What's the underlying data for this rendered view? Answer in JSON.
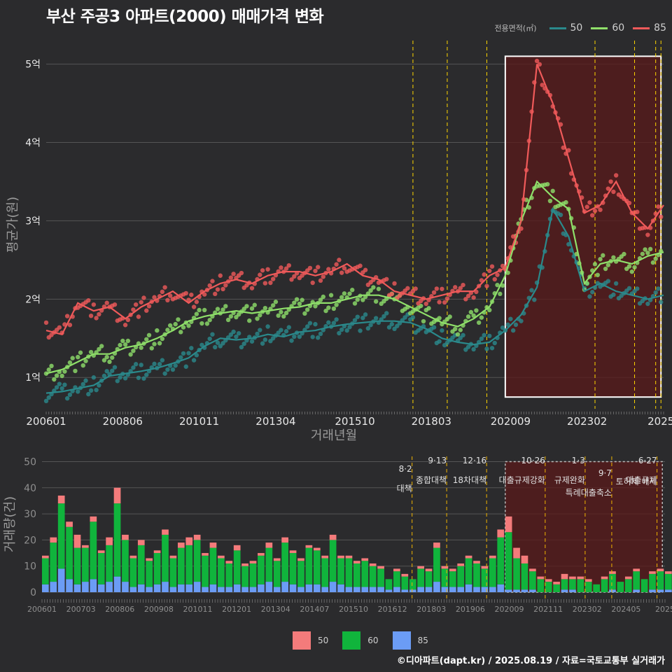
{
  "title": "부산 주공3 아파트(2000) 매매가격 변화",
  "legend_title": "전용면적(㎡)",
  "copyright": "©디아파트(dapt.kr) / 2025.08.19 / 자료=국토교통부 실거래가",
  "colors": {
    "s50": "#2a8a8c",
    "s60": "#8fe06a",
    "s85": "#f05a5a",
    "b50": "#f47b7b",
    "b60": "#10b43c",
    "b85": "#6b9cf5",
    "policy": "#ffd700",
    "highlight": "#5a1a1a"
  },
  "chart_data": [
    {
      "type": "line",
      "ylabel": "평균가(원)",
      "xlabel": "거래년월",
      "x_ticks": [
        "200601",
        "200806",
        "201011",
        "201304",
        "201510",
        "201803",
        "202009",
        "202302",
        "2025"
      ],
      "y_ticks": [
        "1억",
        "2억",
        "3억",
        "4억",
        "5억"
      ],
      "y_tick_values": [
        1,
        2,
        3,
        4,
        5
      ],
      "ylim": [
        0.6,
        5.3
      ],
      "x_unit": "month index from 2006-01",
      "xlim": [
        0,
        234
      ],
      "series": [
        {
          "name": "50",
          "x": [
            0,
            6,
            12,
            18,
            24,
            30,
            36,
            42,
            48,
            54,
            60,
            66,
            72,
            78,
            84,
            90,
            96,
            102,
            108,
            114,
            120,
            126,
            132,
            138,
            144,
            150,
            156,
            162,
            168,
            174,
            180,
            186,
            192,
            198,
            204,
            210,
            216,
            222,
            228,
            234
          ],
          "values": [
            0.8,
            0.82,
            0.86,
            0.9,
            1.02,
            1.05,
            1.08,
            1.12,
            1.18,
            1.25,
            1.4,
            1.5,
            1.48,
            1.5,
            1.55,
            1.52,
            1.58,
            1.6,
            1.65,
            1.68,
            1.7,
            1.72,
            1.72,
            1.7,
            1.62,
            1.5,
            1.45,
            1.42,
            1.45,
            1.6,
            1.8,
            2.15,
            3.15,
            2.8,
            2.1,
            2.2,
            2.1,
            2.05,
            2.0,
            2.05
          ]
        },
        {
          "name": "60",
          "x": [
            0,
            6,
            12,
            18,
            24,
            30,
            36,
            42,
            48,
            54,
            60,
            66,
            72,
            78,
            84,
            90,
            96,
            102,
            108,
            114,
            120,
            126,
            132,
            138,
            144,
            150,
            156,
            162,
            168,
            174,
            180,
            186,
            192,
            198,
            204,
            210,
            216,
            222,
            228,
            234
          ],
          "values": [
            1.05,
            1.1,
            1.2,
            1.3,
            1.3,
            1.38,
            1.42,
            1.5,
            1.6,
            1.72,
            1.78,
            1.82,
            1.85,
            1.82,
            1.85,
            1.88,
            1.9,
            1.95,
            1.95,
            2.0,
            2.05,
            2.05,
            2.0,
            1.9,
            1.8,
            1.7,
            1.65,
            1.75,
            1.9,
            2.3,
            3.0,
            3.5,
            3.3,
            3.15,
            2.2,
            2.45,
            2.5,
            2.45,
            2.55,
            2.6
          ]
        },
        {
          "name": "85",
          "x": [
            0,
            6,
            12,
            18,
            24,
            30,
            36,
            42,
            48,
            54,
            60,
            66,
            72,
            78,
            84,
            90,
            96,
            102,
            108,
            114,
            120,
            126,
            132,
            138,
            144,
            150,
            156,
            162,
            168,
            174,
            180,
            186,
            192,
            198,
            204,
            210,
            216,
            222,
            228,
            234
          ],
          "values": [
            1.6,
            1.55,
            1.95,
            1.85,
            1.9,
            1.75,
            1.9,
            2.0,
            2.1,
            1.95,
            2.1,
            2.2,
            2.25,
            2.2,
            2.3,
            2.35,
            2.35,
            2.3,
            2.35,
            2.45,
            2.3,
            2.25,
            2.1,
            2.05,
            2.0,
            2.05,
            2.1,
            2.1,
            2.3,
            2.4,
            3.0,
            5.0,
            4.5,
            3.8,
            3.1,
            3.2,
            3.5,
            3.1,
            2.9,
            3.2
          ]
        }
      ],
      "policy_months": [
        139,
        152,
        167,
        208,
        223,
        231,
        233
      ],
      "highlight": [
        174,
        233
      ]
    },
    {
      "type": "bar",
      "ylabel": "거래량(건)",
      "x_ticks": [
        "200601",
        "200703",
        "200806",
        "200908",
        "201011",
        "201201",
        "201304",
        "201407",
        "201510",
        "201612",
        "201803",
        "201906",
        "202009",
        "202111",
        "202302",
        "202405",
        "2025"
      ],
      "y_ticks": [
        "0",
        "10",
        "20",
        "30",
        "40",
        "50"
      ],
      "y_tick_values": [
        0,
        10,
        20,
        30,
        40,
        50
      ],
      "ylim": [
        0,
        52
      ],
      "x": [
        0,
        3,
        6,
        9,
        12,
        15,
        18,
        21,
        24,
        27,
        30,
        33,
        36,
        39,
        42,
        45,
        48,
        51,
        54,
        57,
        60,
        63,
        66,
        69,
        72,
        75,
        78,
        81,
        84,
        87,
        90,
        93,
        96,
        99,
        102,
        105,
        108,
        111,
        114,
        117,
        120,
        123,
        126,
        129,
        132,
        135,
        138,
        141,
        144,
        147,
        150,
        153,
        156,
        159,
        162,
        165,
        168,
        171,
        174,
        177,
        180,
        183,
        186,
        189,
        192,
        195,
        198,
        201,
        204,
        207,
        210,
        213,
        216,
        219,
        222,
        225,
        228,
        231,
        234
      ],
      "series": [
        {
          "name": "50",
          "values": [
            1,
            2,
            3,
            2,
            5,
            1,
            2,
            1,
            3,
            6,
            2,
            1,
            2,
            1,
            1,
            2,
            1,
            2,
            3,
            2,
            1,
            2,
            1,
            1,
            2,
            1,
            1,
            1,
            2,
            1,
            2,
            1,
            1,
            1,
            1,
            1,
            2,
            1,
            1,
            1,
            1,
            1,
            1,
            0,
            1,
            1,
            0,
            1,
            1,
            2,
            1,
            1,
            1,
            1,
            1,
            1,
            1,
            3,
            6,
            4,
            3,
            1,
            1,
            1,
            1,
            2,
            1,
            1,
            1,
            0,
            1,
            1,
            0,
            1,
            1,
            0,
            1,
            1,
            1
          ]
        },
        {
          "name": "60",
          "values": [
            10,
            15,
            25,
            20,
            14,
            13,
            22,
            12,
            14,
            28,
            16,
            11,
            15,
            10,
            12,
            18,
            11,
            14,
            15,
            16,
            12,
            14,
            11,
            9,
            13,
            8,
            9,
            11,
            13,
            10,
            15,
            12,
            10,
            14,
            13,
            11,
            16,
            10,
            11,
            9,
            10,
            8,
            7,
            4,
            6,
            5,
            4,
            7,
            6,
            13,
            7,
            6,
            8,
            10,
            9,
            7,
            11,
            18,
            22,
            12,
            10,
            7,
            5,
            4,
            3,
            4,
            4,
            5,
            4,
            3,
            5,
            6,
            4,
            5,
            7,
            5,
            6,
            7,
            6
          ]
        },
        {
          "name": "85",
          "values": [
            3,
            4,
            9,
            5,
            3,
            4,
            5,
            3,
            4,
            6,
            4,
            2,
            3,
            2,
            3,
            4,
            2,
            3,
            3,
            4,
            2,
            3,
            2,
            2,
            3,
            2,
            2,
            3,
            4,
            2,
            4,
            3,
            2,
            3,
            3,
            2,
            4,
            3,
            2,
            2,
            2,
            2,
            2,
            1,
            2,
            1,
            1,
            2,
            2,
            4,
            2,
            2,
            2,
            3,
            2,
            2,
            2,
            3,
            1,
            1,
            1,
            1,
            0,
            0,
            0,
            1,
            1,
            0,
            0,
            0,
            0,
            1,
            0,
            0,
            1,
            0,
            1,
            1,
            1
          ]
        }
      ],
      "annotations": [
        {
          "month": 139,
          "date": "8·2",
          "label": "대책"
        },
        {
          "month": 152,
          "date": "9·13",
          "label": "종합대책"
        },
        {
          "month": 167,
          "date": "12·16",
          "label": "18차대책"
        },
        {
          "month": 189,
          "date": "10·26",
          "label": "대출규제강화"
        },
        {
          "month": 204,
          "date": "1·3",
          "label": "규제완화"
        },
        {
          "month": 214,
          "date": "9·7",
          "label": "특례대출축소"
        },
        {
          "month": 231,
          "date": "6·27",
          "label": "대출규제"
        },
        {
          "month": 231,
          "date": "",
          "label": "토허제 해제"
        }
      ]
    }
  ]
}
